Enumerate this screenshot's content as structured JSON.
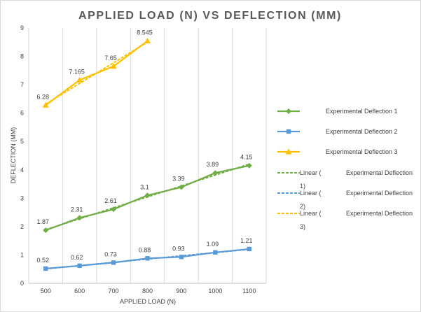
{
  "chart_data": {
    "type": "line",
    "title": "APPLIED LOAD (N) VS DEFLECTION (MM)",
    "xlabel": "APPLIED LOAD (N)",
    "ylabel": "DEFLECTION (MM)",
    "categories": [
      500,
      600,
      700,
      800,
      900,
      1000,
      1100
    ],
    "ylim": [
      0,
      9
    ],
    "yticks": [
      0,
      1,
      2,
      3,
      4,
      5,
      6,
      7,
      8,
      9
    ],
    "grid": "vertical",
    "legend_position": "right",
    "series": [
      {
        "name": "Experimental Deflection 1",
        "color": "#70ad47",
        "marker": "diamond",
        "values": [
          1.87,
          2.31,
          2.61,
          3.1,
          3.39,
          3.89,
          4.15
        ],
        "labels": [
          "1.87",
          "2.31",
          "2.61",
          "3.1",
          "3.39",
          "3.89",
          "4.15"
        ]
      },
      {
        "name": "Experimental Deflection 2",
        "color": "#5b9bd5",
        "marker": "square",
        "values": [
          0.52,
          0.62,
          0.73,
          0.88,
          0.93,
          1.09,
          1.21
        ],
        "labels": [
          "0.52",
          "0.62",
          "0.73",
          "0.88",
          "0.93",
          "1.09",
          "1.21"
        ]
      },
      {
        "name": "Experimental Deflection 3",
        "color": "#ffc000",
        "marker": "triangle",
        "values": [
          6.28,
          7.165,
          7.65,
          8.545,
          null,
          null,
          null
        ],
        "labels": [
          "6.28",
          "7.165",
          "7.65",
          "8.545",
          "",
          "",
          ""
        ]
      }
    ],
    "trendlines": [
      {
        "type": "linear",
        "of_series": 0,
        "color": "#70ad47",
        "legend_lines": [
          "Linear (",
          "1)"
        ],
        "legend_side_text": "Experimental Deflection"
      },
      {
        "type": "linear",
        "of_series": 1,
        "color": "#5b9bd5",
        "legend_lines": [
          "Linear (",
          "2)"
        ],
        "legend_side_text": "Experimental Deflection"
      },
      {
        "type": "linear",
        "of_series": 2,
        "color": "#ffc000",
        "legend_lines": [
          "Linear (",
          "3)"
        ],
        "legend_side_text": "Experimental Deflection"
      }
    ]
  }
}
